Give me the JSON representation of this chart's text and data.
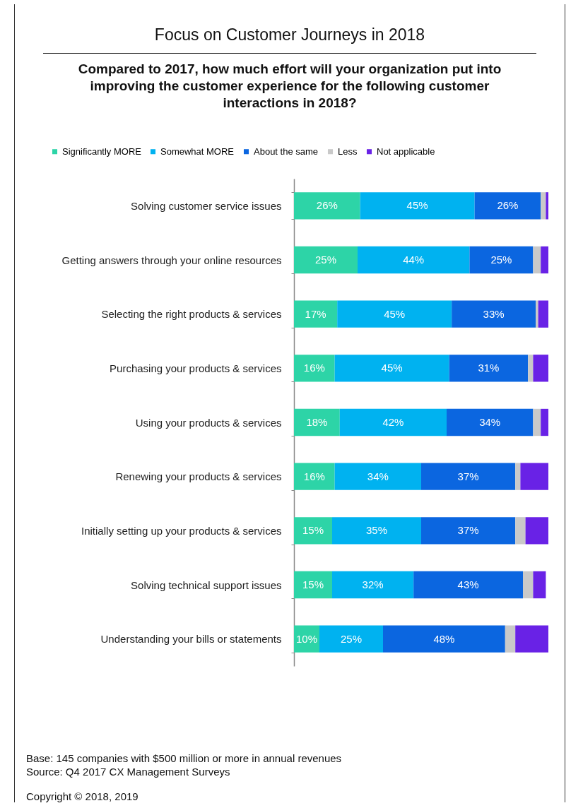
{
  "chart_data": {
    "type": "bar",
    "orientation": "horizontal",
    "stacked": true,
    "title": "Focus on Customer Journeys in 2018",
    "subtitle": "Compared to 2017, how much effort will your organization put into improving the customer experience for the following customer interactions in 2018?",
    "legend": "top left",
    "categories": [
      "Solving customer service issues",
      "Getting answers through your online resources",
      "Selecting the right products & services",
      "Purchasing your products & services",
      "Using your products & services",
      "Renewing your products & services",
      "Initially setting up your products & services",
      "Solving technical support issues",
      "Understanding your bills or statements"
    ],
    "series": [
      {
        "name": "Significantly MORE",
        "color": "#2dd4a7",
        "values": [
          26,
          25,
          17,
          16,
          18,
          16,
          15,
          15,
          10
        ],
        "value_labels": [
          "26%",
          "25%",
          "17%",
          "16%",
          "18%",
          "16%",
          "15%",
          "15%",
          "10%"
        ]
      },
      {
        "name": "Somewhat MORE",
        "color": "#00b2f0",
        "values": [
          45,
          44,
          45,
          45,
          42,
          34,
          35,
          32,
          25
        ],
        "value_labels": [
          "45%",
          "44%",
          "45%",
          "45%",
          "42%",
          "34%",
          "35%",
          "32%",
          "25%"
        ]
      },
      {
        "name": "About the same",
        "color": "#0b66e0",
        "values": [
          26,
          25,
          33,
          31,
          34,
          37,
          37,
          43,
          48
        ],
        "value_labels": [
          "26%",
          "25%",
          "33%",
          "31%",
          "34%",
          "37%",
          "37%",
          "43%",
          "48%"
        ]
      },
      {
        "name": "Less",
        "color": "#c9c9c9",
        "values": [
          2,
          3,
          1,
          2,
          3,
          2,
          4,
          4,
          4
        ]
      },
      {
        "name": "Not applicable",
        "color": "#6922e6",
        "values": [
          1,
          3,
          4,
          6,
          3,
          11,
          9,
          5,
          13
        ]
      }
    ],
    "annotations": [
      "Base:   145 companies with $500 million or more in annual revenues",
      "Source: Q4 2017 CX Management Surveys",
      "Copyright © 2018, 2019"
    ]
  }
}
